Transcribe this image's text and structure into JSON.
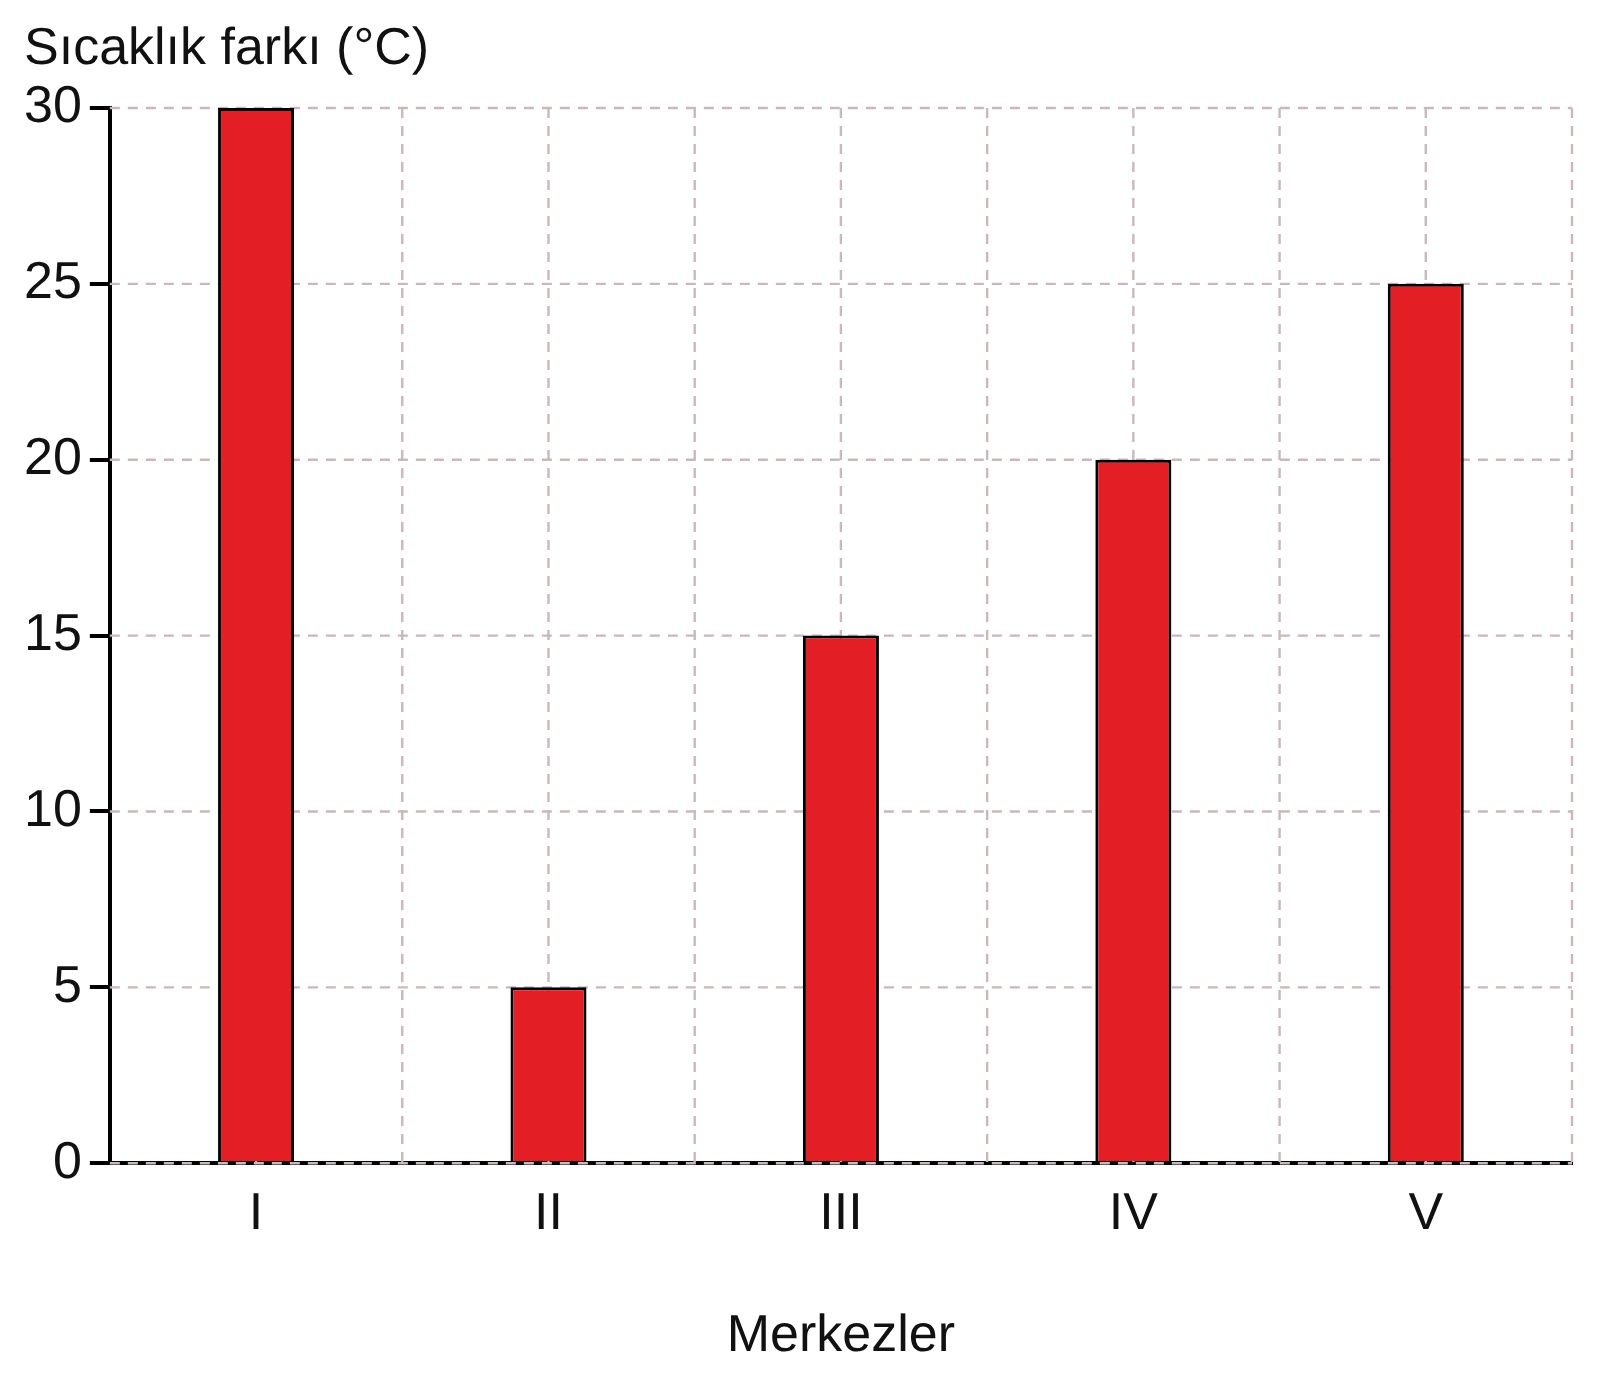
{
  "chart_data": {
    "type": "bar",
    "xlabel": "Merkezler",
    "ylabel": "Sıcaklık farkı (°C)",
    "categories": [
      "I",
      "II",
      "III",
      "IV",
      "V"
    ],
    "values": [
      30,
      5,
      15,
      20,
      25
    ],
    "color": "#e31e24",
    "ylim": [
      0,
      30
    ],
    "yticks": [
      0,
      5,
      10,
      15,
      20,
      25,
      30
    ],
    "grid": true
  }
}
